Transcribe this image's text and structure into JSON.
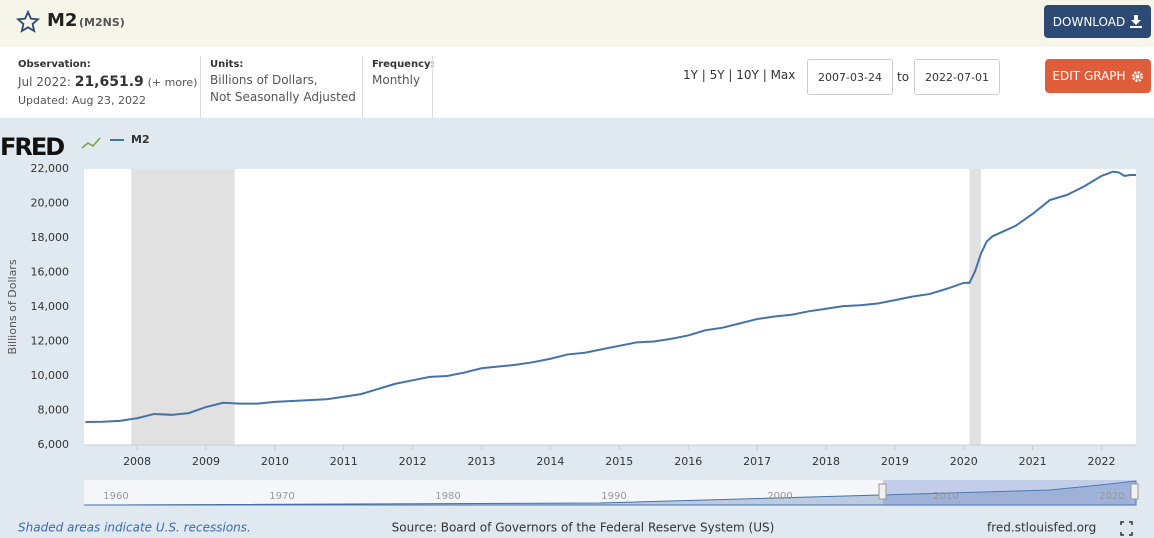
{
  "header": {
    "title": "M2",
    "series_id": "(M2NS)",
    "download": "DOWNLOAD"
  },
  "info": {
    "observation_label": "Observation:",
    "observation_date": "Jul 2022:",
    "observation_value": "21,651.9",
    "more": "(+ more)",
    "updated": "Updated: Aug 23, 2022",
    "units_label": "Units:",
    "units_line1": "Billions of Dollars,",
    "units_line2": "Not Seasonally Adjusted",
    "frequency_label": "Frequency:",
    "frequency": "Monthly"
  },
  "controls": {
    "ranges": [
      "1Y",
      "5Y",
      "10Y",
      "Max"
    ],
    "to": "to",
    "edit": "EDIT GRAPH"
  },
  "chart_data": {
    "type": "line",
    "logo": "FRED",
    "ylabel": "Billions of Dollars",
    "x": [
      "2007-04",
      "2007-07",
      "2007-10",
      "2008-01",
      "2008-04",
      "2008-07",
      "2008-10",
      "2009-01",
      "2009-04",
      "2009-07",
      "2009-10",
      "2010-01",
      "2010-04",
      "2010-07",
      "2010-10",
      "2011-01",
      "2011-04",
      "2011-07",
      "2011-10",
      "2012-01",
      "2012-04",
      "2012-07",
      "2012-10",
      "2013-01",
      "2013-04",
      "2013-07",
      "2013-10",
      "2014-01",
      "2014-04",
      "2014-07",
      "2014-10",
      "2015-01",
      "2015-04",
      "2015-07",
      "2015-10",
      "2016-01",
      "2016-04",
      "2016-07",
      "2016-10",
      "2017-01",
      "2017-04",
      "2017-07",
      "2017-10",
      "2018-01",
      "2018-04",
      "2018-07",
      "2018-10",
      "2019-01",
      "2019-04",
      "2019-07",
      "2019-10",
      "2020-01",
      "2020-02",
      "2020-03",
      "2020-04",
      "2020-05",
      "2020-06",
      "2020-07",
      "2020-10",
      "2021-01",
      "2021-04",
      "2021-07",
      "2021-10",
      "2022-01",
      "2022-03",
      "2022-04",
      "2022-05",
      "2022-06",
      "2022-07"
    ],
    "series": [
      {
        "name": "M2",
        "color": "#4572a7",
        "values": [
          7330,
          7350,
          7400,
          7550,
          7800,
          7750,
          7850,
          8200,
          8450,
          8400,
          8400,
          8500,
          8550,
          8600,
          8650,
          8800,
          8950,
          9250,
          9550,
          9750,
          9950,
          10000,
          10200,
          10450,
          10550,
          10650,
          10800,
          11000,
          11250,
          11350,
          11550,
          11750,
          11950,
          12000,
          12150,
          12350,
          12650,
          12800,
          13050,
          13300,
          13450,
          13550,
          13750,
          13900,
          14050,
          14100,
          14200,
          14400,
          14600,
          14750,
          15050,
          15400,
          15400,
          16100,
          17100,
          17800,
          18100,
          18250,
          18700,
          19400,
          20200,
          20500,
          21000,
          21600,
          21850,
          21800,
          21600,
          21650,
          21651.9
        ]
      }
    ],
    "recessions": [
      [
        "2007-12",
        "2009-06"
      ],
      [
        "2020-02",
        "2020-04"
      ]
    ],
    "xlim": [
      "2007-03-24",
      "2022-07-01"
    ],
    "xticks": [
      2008,
      2009,
      2010,
      2011,
      2012,
      2013,
      2014,
      2015,
      2016,
      2017,
      2018,
      2019,
      2020,
      2021,
      2022
    ],
    "ylim": [
      6000,
      22000
    ],
    "yticks": [
      {
        "value": 6000,
        "label": "6,000"
      },
      {
        "value": 8000,
        "label": "8,000"
      },
      {
        "value": 10000,
        "label": "10,000"
      },
      {
        "value": 12000,
        "label": "12,000"
      },
      {
        "value": 14000,
        "label": "14,000"
      },
      {
        "value": 16000,
        "label": "16,000"
      },
      {
        "value": 18000,
        "label": "18,000"
      },
      {
        "value": 20000,
        "label": "20,000"
      },
      {
        "value": 22000,
        "label": "22,000"
      }
    ],
    "grid": false
  },
  "navigator": {
    "labels": [
      1960,
      1970,
      1980,
      1990,
      2000,
      2010,
      2020
    ]
  },
  "footer": {
    "note": "Shaded areas indicate U.S. recessions.",
    "source": "Source: Board of Governors of the Federal Reserve System (US)",
    "site": "fred.stlouisfed.org"
  }
}
